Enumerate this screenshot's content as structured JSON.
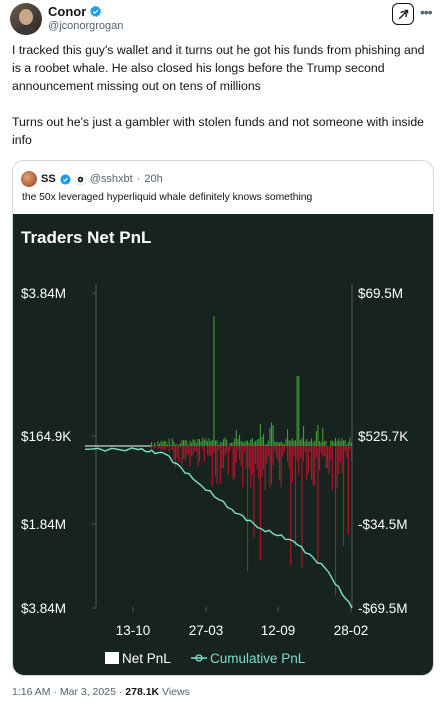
{
  "author": {
    "name": "Conor",
    "handle": "@jconorgrogan"
  },
  "tweet": {
    "text": "I tracked this guy's wallet and it turns out he got his funds from phishing and is a roobet whale. He also closed his longs before the Trump second announcement missing out on tens of millions\n\nTurns out he's just a gambler with stolen funds and not someone with inside info"
  },
  "quoted": {
    "name": "SS",
    "handle": "@sshxbt",
    "separator": "·",
    "time": "20h",
    "text": "the 50x leveraged hyperliquid whale definitely knows something"
  },
  "footer": {
    "time": "1:16 AM",
    "sep1": "·",
    "date": "Mar 3, 2025",
    "sep2": "·",
    "views": "278.1K",
    "views_label": "Views"
  },
  "icons": {
    "verified": "verified-badge-icon",
    "grok": "grok-icon",
    "more": "more-dots-icon"
  },
  "colors": {
    "chart_bg": "#16231f",
    "positive_bar": "#4a9a3a",
    "negative_bar": "#b5162c",
    "cumulative_line": "#7ee0c8"
  },
  "chart_data": {
    "type": "bar",
    "title": "Traders Net PnL",
    "left_axis_ticks": [
      "$3.84M",
      "$164.9K",
      "$1.84M",
      "$3.84M"
    ],
    "right_axis_ticks": [
      "$69.5M",
      "$525.7K",
      "-$34.5M",
      "-$69.5M"
    ],
    "x_ticks": [
      "13-10",
      "27-03",
      "12-09",
      "28-02"
    ],
    "legend": [
      {
        "label": "Net PnL"
      },
      {
        "label": "Cumulative PnL"
      }
    ],
    "series": [
      {
        "name": "Net PnL",
        "kind": "bar",
        "note": "daily bars, mostly small; large negative spikes after 27-03"
      },
      {
        "name": "Cumulative PnL",
        "kind": "line",
        "points": [
          {
            "x": 0.0,
            "y": 525.7
          },
          {
            "x": 0.2,
            "y": 400
          },
          {
            "x": 0.3,
            "y": -1500
          },
          {
            "x": 0.42,
            "y": -14000
          },
          {
            "x": 0.55,
            "y": -26000
          },
          {
            "x": 0.66,
            "y": -34500
          },
          {
            "x": 0.78,
            "y": -40000
          },
          {
            "x": 0.9,
            "y": -52000
          },
          {
            "x": 1.0,
            "y": -69500
          }
        ]
      }
    ]
  }
}
